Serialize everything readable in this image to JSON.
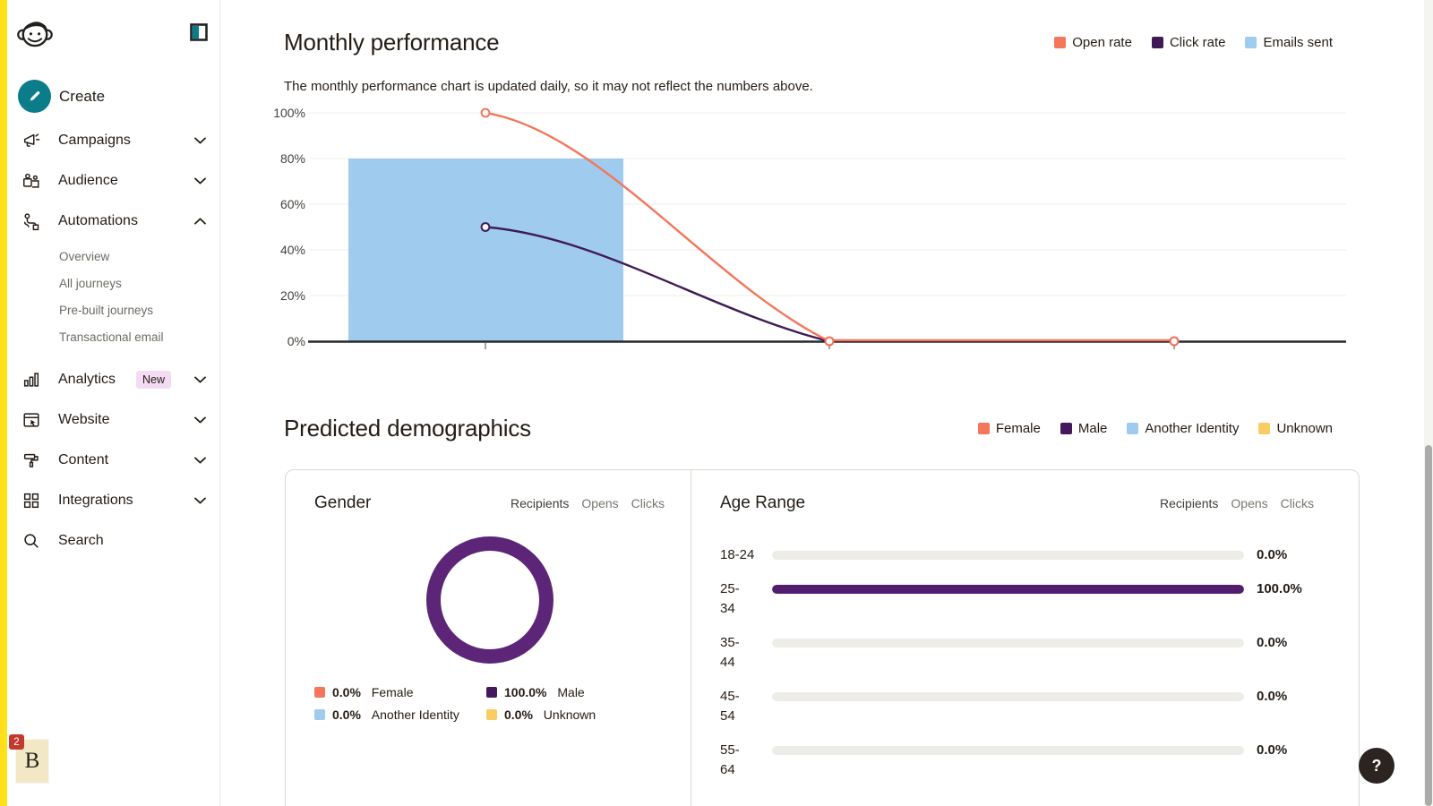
{
  "sidebar": {
    "logo": "mailchimp-freddie",
    "create_label": "Create",
    "badge_color": "#F3DBF3",
    "accent_teal": "#0B7C8A",
    "stripe_yellow": "#FFE01B",
    "items": [
      {
        "label": "Campaigns",
        "icon": "megaphone-icon",
        "chevron": "down"
      },
      {
        "label": "Audience",
        "icon": "audience-icon",
        "chevron": "down"
      },
      {
        "label": "Automations",
        "icon": "automations-icon",
        "chevron": "up",
        "expanded": true
      },
      {
        "label": "Analytics",
        "icon": "analytics-icon",
        "chevron": "down",
        "badge": "New"
      },
      {
        "label": "Website",
        "icon": "website-icon",
        "chevron": "down"
      },
      {
        "label": "Content",
        "icon": "content-icon",
        "chevron": "down"
      },
      {
        "label": "Integrations",
        "icon": "integrations-icon",
        "chevron": "down"
      },
      {
        "label": "Search",
        "icon": "search-icon"
      }
    ],
    "automations_submenu": [
      "Overview",
      "All journeys",
      "Pre-built journeys",
      "Transactional email"
    ]
  },
  "demographics": {
    "title": "Predicted demographics",
    "legend": [
      {
        "label": "Female",
        "color": "#F4765B"
      },
      {
        "label": "Male",
        "color": "#45175C"
      },
      {
        "label": "Another Identity",
        "color": "#9FCBEE"
      },
      {
        "label": "Unknown",
        "color": "#F8CE63"
      }
    ]
  },
  "chart_data": [
    {
      "id": "monthly-performance",
      "type": "line",
      "title": "Monthly performance",
      "subtitle": "The monthly performance chart is updated daily, so it may not reflect the numbers above.",
      "y_ticks": [
        "100%",
        "80%",
        "60%",
        "40%",
        "20%",
        "0%"
      ],
      "ylim": [
        0,
        100
      ],
      "x": [
        1,
        2,
        3
      ],
      "x_tick_labels": [
        "",
        "",
        ""
      ],
      "grid": true,
      "legend_position": "top-right",
      "series": [
        {
          "name": "Open rate",
          "type": "line",
          "color": "#F4765B",
          "values": [
            100,
            0,
            0
          ]
        },
        {
          "name": "Click rate",
          "type": "line",
          "color": "#3F1B55",
          "values": [
            50,
            0,
            0
          ]
        },
        {
          "name": "Emails sent",
          "type": "bar",
          "color": "#9FCBEE",
          "values": [
            80,
            0,
            0
          ]
        }
      ]
    },
    {
      "id": "gender",
      "type": "pie",
      "title": "Gender",
      "tabs": [
        "Recipients",
        "Opens",
        "Clicks"
      ],
      "active_tab": "Recipients",
      "donut_color": "#5D2577",
      "slices": [
        {
          "label": "Female",
          "value": 0.0,
          "display": "0.0%",
          "color": "#F4765B"
        },
        {
          "label": "Male",
          "value": 100.0,
          "display": "100.0%",
          "color": "#45175C"
        },
        {
          "label": "Another Identity",
          "value": 0.0,
          "display": "0.0%",
          "color": "#9FCBEE"
        },
        {
          "label": "Unknown",
          "value": 0.0,
          "display": "0.0%",
          "color": "#F8CE63"
        }
      ]
    },
    {
      "id": "age-range",
      "type": "bar",
      "title": "Age Range",
      "tabs": [
        "Recipients",
        "Opens",
        "Clicks"
      ],
      "active_tab": "Recipients",
      "categories": [
        "18-24",
        "25-34",
        "35-44",
        "45-54",
        "55-64"
      ],
      "category_display_lines": [
        [
          "18-24"
        ],
        [
          "25-",
          "34"
        ],
        [
          "35-",
          "44"
        ],
        [
          "45-",
          "54"
        ],
        [
          "55-",
          "64"
        ]
      ],
      "values": [
        0.0,
        100.0,
        0.0,
        0.0,
        0.0
      ],
      "value_labels": [
        "0.0%",
        "100.0%",
        "0.0%",
        "0.0%",
        "0.0%"
      ],
      "bar_color": "#511E6D",
      "track_color": "#EDECE7"
    }
  ],
  "overlay": {
    "badge_count": "2",
    "tile_letter": "B"
  },
  "help": {
    "label": "?"
  }
}
